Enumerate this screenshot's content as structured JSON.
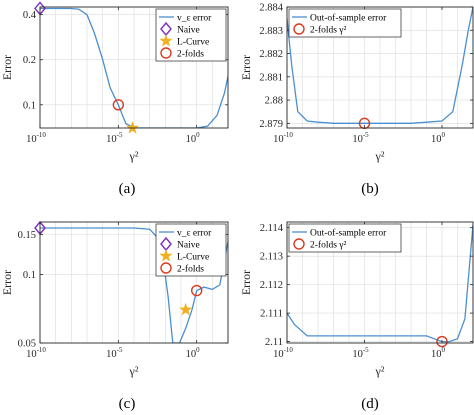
{
  "figure": {
    "captions": [
      "(a)",
      "(b)",
      "(c)",
      "(d)"
    ]
  },
  "colors": {
    "line": "#4a8fd0",
    "naive": "#7b2fbe",
    "lcurve": "#f0b020",
    "twofolds": "#d93b1f",
    "grid": "#dcdcdc",
    "axis": "#262626"
  },
  "chart_data": [
    {
      "type": "line",
      "panel": "(a)",
      "xscale": "log",
      "yscale": "log",
      "xlim": [
        1e-10,
        100
      ],
      "ylim": [
        0.07,
        0.45
      ],
      "xticks": [
        {
          "value": 1e-10,
          "base": "10",
          "exp": "-10"
        },
        {
          "value": 1e-05,
          "base": "10",
          "exp": "-5"
        },
        {
          "value": 1,
          "base": "10",
          "exp": "0"
        }
      ],
      "yticks": [
        {
          "value": 0.1,
          "label": "0.1"
        },
        {
          "value": 0.2,
          "label": "0.2"
        },
        {
          "value": 0.4,
          "label": "0.4"
        }
      ],
      "xlabel": "γ²",
      "ylabel": "Error",
      "grid": true,
      "legend_position": "top-right",
      "series": [
        {
          "name": "v_ε error",
          "style": "line",
          "x": [
            1e-10,
            3e-10,
            1e-09,
            1e-08,
            3e-08,
            1e-07,
            3e-07,
            1e-06,
            3e-06,
            1e-05,
            3e-05,
            0.0001,
            0.001,
            0.01,
            0.1,
            1,
            5,
            20,
            60,
            100
          ],
          "y": [
            0.44,
            0.44,
            0.44,
            0.44,
            0.435,
            0.4,
            0.3,
            0.2,
            0.13,
            0.1,
            0.075,
            0.07,
            0.07,
            0.07,
            0.07,
            0.07,
            0.072,
            0.085,
            0.12,
            0.155
          ]
        },
        {
          "name": "Naive",
          "style": "diamond",
          "x": [
            1e-10
          ],
          "y": [
            0.44
          ]
        },
        {
          "name": "L-Curve",
          "style": "star",
          "x": [
            8e-05
          ],
          "y": [
            0.07
          ]
        },
        {
          "name": "2-folds",
          "style": "circle",
          "x": [
            1e-05
          ],
          "y": [
            0.1
          ]
        }
      ]
    },
    {
      "type": "line",
      "panel": "(b)",
      "xscale": "log",
      "yscale": "linear",
      "xlim": [
        1e-10,
        100
      ],
      "ylim": [
        2.8788,
        2.884
      ],
      "xticks": [
        {
          "value": 1e-10,
          "base": "10",
          "exp": "-10"
        },
        {
          "value": 1e-05,
          "base": "10",
          "exp": "-5"
        },
        {
          "value": 1,
          "base": "10",
          "exp": "0"
        }
      ],
      "yticks": [
        {
          "value": 2.879,
          "label": "2.879"
        },
        {
          "value": 2.88,
          "label": "2.88"
        },
        {
          "value": 2.881,
          "label": "2.881"
        },
        {
          "value": 2.882,
          "label": "2.882"
        },
        {
          "value": 2.883,
          "label": "2.883"
        },
        {
          "value": 2.884,
          "label": "2.884"
        }
      ],
      "xlabel": "γ²",
      "ylabel": "Error",
      "grid": true,
      "legend_position": "top-left",
      "series": [
        {
          "name": "Out-of-sample error",
          "style": "line",
          "x": [
            1e-10,
            2e-10,
            5e-10,
            2e-09,
            1e-08,
            1e-07,
            1e-06,
            1e-05,
            0.0001,
            0.001,
            0.01,
            0.1,
            1,
            5,
            20,
            50,
            100
          ],
          "y": [
            2.8835,
            2.8815,
            2.8795,
            2.8791,
            2.87905,
            2.879,
            2.879,
            2.879,
            2.879,
            2.879,
            2.879,
            2.87905,
            2.8791,
            2.8795,
            2.8815,
            2.883,
            2.884
          ]
        },
        {
          "name": "2-folds γ²",
          "style": "circle",
          "x": [
            1e-05
          ],
          "y": [
            2.879
          ]
        }
      ]
    },
    {
      "type": "line",
      "panel": "(c)",
      "xscale": "log",
      "yscale": "log",
      "xlim": [
        1e-10,
        100
      ],
      "ylim": [
        0.05,
        0.17
      ],
      "xticks": [
        {
          "value": 1e-10,
          "base": "10",
          "exp": "-10"
        },
        {
          "value": 1e-05,
          "base": "10",
          "exp": "-5"
        },
        {
          "value": 1,
          "base": "10",
          "exp": "0"
        }
      ],
      "yticks": [
        {
          "value": 0.05,
          "label": "0.05"
        },
        {
          "value": 0.1,
          "label": "0.1"
        },
        {
          "value": 0.15,
          "label": "0.15"
        }
      ],
      "xlabel": "γ²",
      "ylabel": "Error",
      "grid": true,
      "legend_position": "top-right",
      "series": [
        {
          "name": "v_ε error",
          "style": "line",
          "x": [
            1e-10,
            1e-08,
            1e-06,
            0.0001,
            0.001,
            0.005,
            0.015,
            0.03,
            0.08,
            0.2,
            0.5,
            1,
            3,
            10,
            30,
            100
          ],
          "y": [
            0.16,
            0.16,
            0.16,
            0.16,
            0.158,
            0.14,
            0.08,
            0.05,
            0.05,
            0.058,
            0.07,
            0.085,
            0.088,
            0.086,
            0.09,
            0.14
          ]
        },
        {
          "name": "Naive",
          "style": "diamond",
          "x": [
            1e-10
          ],
          "y": [
            0.16
          ]
        },
        {
          "name": "L-Curve",
          "style": "star",
          "x": [
            0.2
          ],
          "y": [
            0.07
          ]
        },
        {
          "name": "2-folds",
          "style": "circle",
          "x": [
            1
          ],
          "y": [
            0.085
          ]
        }
      ]
    },
    {
      "type": "line",
      "panel": "(d)",
      "xscale": "log",
      "yscale": "linear",
      "xlim": [
        1e-10,
        100
      ],
      "ylim": [
        2.10995,
        2.1142
      ],
      "xticks": [
        {
          "value": 1e-10,
          "base": "10",
          "exp": "-10"
        },
        {
          "value": 1e-05,
          "base": "10",
          "exp": "-5"
        },
        {
          "value": 1,
          "base": "10",
          "exp": "0"
        }
      ],
      "yticks": [
        {
          "value": 2.11,
          "label": "2.11"
        },
        {
          "value": 2.111,
          "label": "2.111"
        },
        {
          "value": 2.112,
          "label": "2.112"
        },
        {
          "value": 2.113,
          "label": "2.113"
        },
        {
          "value": 2.114,
          "label": "2.114"
        }
      ],
      "xlabel": "γ²",
      "ylabel": "Error",
      "grid": true,
      "legend_position": "top-left",
      "series": [
        {
          "name": "Out-of-sample error",
          "style": "line",
          "x": [
            1e-10,
            3e-10,
            2e-09,
            1e-08,
            1e-07,
            1e-06,
            1e-05,
            0.0001,
            0.001,
            0.01,
            0.1,
            0.3,
            1,
            3,
            10,
            30,
            100
          ],
          "y": [
            2.111,
            2.1106,
            2.1102,
            2.1102,
            2.1102,
            2.1102,
            2.1102,
            2.1102,
            2.1102,
            2.1102,
            2.1102,
            2.1101,
            2.11,
            2.11,
            2.1101,
            2.1108,
            2.1141
          ]
        },
        {
          "name": "2-folds γ²",
          "style": "circle",
          "x": [
            1
          ],
          "y": [
            2.11
          ]
        }
      ]
    }
  ]
}
